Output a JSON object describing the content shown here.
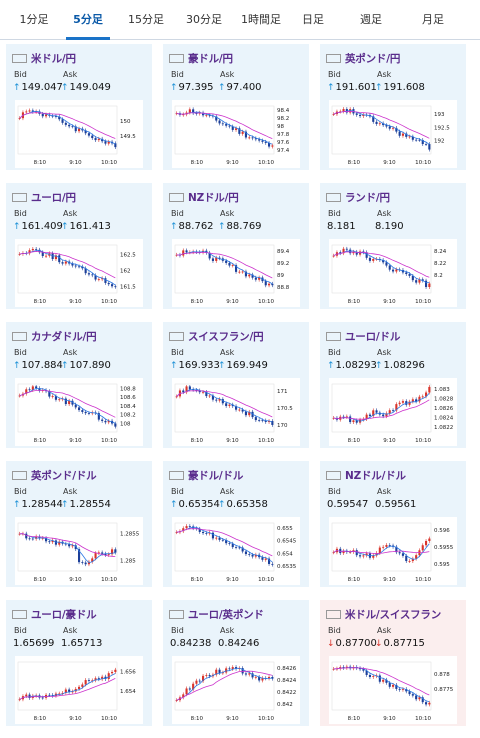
{
  "tabs": [
    {
      "label": "1分足"
    },
    {
      "label": "5分足",
      "active": true
    },
    {
      "label": "15分足"
    },
    {
      "label": "30分足"
    },
    {
      "label": "1時間足"
    },
    {
      "label": "日足"
    },
    {
      "label": "週足"
    },
    {
      "label": "月足"
    }
  ],
  "labels": {
    "bid": "Bid",
    "ask": "Ask"
  },
  "colors": {
    "accent": "#1a73c8",
    "pair": "#5a2d8c",
    "up_arrow": "#1a8fd6",
    "down_arrow": "#d9342b",
    "bull": "#d9342b",
    "bear": "#1c3f99",
    "ma_fast": "#2b78e4",
    "ma_slow": "#cc33cc"
  },
  "cards": [
    {
      "pair": "米ドル/円",
      "flag": "us-flag-icon",
      "bid": "149.047",
      "ask": "149.049",
      "dir": "up",
      "xticks": [
        "8:10",
        "9:10",
        "10:10"
      ],
      "yticks": [
        "150",
        "149.5"
      ],
      "yrange": [
        148.9,
        150.5
      ],
      "shape": "down"
    },
    {
      "pair": "豪ドル/円",
      "flag": "au-flag-icon",
      "bid": "97.395",
      "ask": "97.400",
      "dir": "up",
      "xticks": [
        "8:10",
        "9:10",
        "10:10"
      ],
      "yticks": [
        "98.4",
        "98.2",
        "98",
        "97.8",
        "97.6",
        "97.4"
      ],
      "yrange": [
        97.3,
        98.5
      ],
      "shape": "down"
    },
    {
      "pair": "英ポンド/円",
      "flag": "gb-flag-icon",
      "bid": "191.601",
      "ask": "191.608",
      "dir": "up",
      "xticks": [
        "8:10",
        "9:10",
        "10:10"
      ],
      "yticks": [
        "193",
        "192.5",
        "192"
      ],
      "yrange": [
        191.5,
        193.3
      ],
      "shape": "down"
    },
    {
      "pair": "ユーロ/円",
      "flag": "eu-flag-icon",
      "bid": "161.409",
      "ask": "161.413",
      "dir": "up",
      "xticks": [
        "8:10",
        "9:10",
        "10:10"
      ],
      "yticks": [
        "162.5",
        "162",
        "161.5"
      ],
      "yrange": [
        161.3,
        162.8
      ],
      "shape": "down"
    },
    {
      "pair": "NZドル/円",
      "flag": "nz-flag-icon",
      "bid": "88.762",
      "ask": "88.769",
      "dir": "up",
      "xticks": [
        "8:10",
        "9:10",
        "10:10"
      ],
      "yticks": [
        "89.4",
        "89.2",
        "89",
        "88.8"
      ],
      "yrange": [
        88.7,
        89.5
      ],
      "shape": "down"
    },
    {
      "pair": "ランド/円",
      "flag": "za-flag-icon",
      "bid": "8.181",
      "ask": "8.190",
      "dir": "none",
      "xticks": [
        "8:10",
        "9:10",
        "10:10"
      ],
      "yticks": [
        "8.24",
        "8.22",
        "8.2"
      ],
      "yrange": [
        8.17,
        8.25
      ],
      "shape": "down"
    },
    {
      "pair": "カナダドル/円",
      "flag": "ca-flag-icon",
      "bid": "107.884",
      "ask": "107.890",
      "dir": "up",
      "xticks": [
        "8:10",
        "9:10",
        "10:10"
      ],
      "yticks": [
        "108.8",
        "108.6",
        "108.4",
        "108.2",
        "108"
      ],
      "yrange": [
        107.8,
        108.9
      ],
      "shape": "down"
    },
    {
      "pair": "スイスフラン/円",
      "flag": "ch-flag-icon",
      "bid": "169.933",
      "ask": "169.949",
      "dir": "up",
      "xticks": [
        "8:10",
        "9:10",
        "10:10"
      ],
      "yticks": [
        "171",
        "170.5",
        "170"
      ],
      "yrange": [
        169.8,
        171.2
      ],
      "shape": "down"
    },
    {
      "pair": "ユーロ/ドル",
      "flag": "eu-flag-icon",
      "bid": "1.08293",
      "ask": "1.08296",
      "dir": "up",
      "xticks": [
        "8:10",
        "9:10",
        "10:10"
      ],
      "yticks": [
        "1.083",
        "1.0828",
        "1.0826",
        "1.0824",
        "1.0822"
      ],
      "yrange": [
        1.0821,
        1.0831
      ],
      "shape": "up"
    },
    {
      "pair": "英ポンド/ドル",
      "flag": "gb-flag-icon",
      "bid": "1.28544",
      "ask": "1.28554",
      "dir": "up",
      "xticks": [
        "8:10",
        "9:10",
        "10:10"
      ],
      "yticks": [
        "1.2855",
        "1.285"
      ],
      "yrange": [
        1.2848,
        1.2857
      ],
      "shape": "dip"
    },
    {
      "pair": "豪ドル/ドル",
      "flag": "au-flag-icon",
      "bid": "0.65354",
      "ask": "0.65358",
      "dir": "up",
      "xticks": [
        "8:10",
        "9:10",
        "10:10"
      ],
      "yticks": [
        "0.655",
        "0.6545",
        "0.654",
        "0.6535"
      ],
      "yrange": [
        0.6533,
        0.6552
      ],
      "shape": "down"
    },
    {
      "pair": "NZドル/ドル",
      "flag": "nz-flag-icon",
      "bid": "0.59547",
      "ask": "0.59561",
      "dir": "none",
      "xticks": [
        "8:10",
        "9:10",
        "10:10"
      ],
      "yticks": [
        "0.596",
        "0.5955",
        "0.595"
      ],
      "yrange": [
        0.5948,
        0.5962
      ],
      "shape": "flat"
    },
    {
      "pair": "ユーロ/豪ドル",
      "flag": "eu-flag-icon",
      "bid": "1.65699",
      "ask": "1.65713",
      "dir": "none",
      "xticks": [
        "8:10",
        "9:10",
        "10:10"
      ],
      "yticks": [
        "1.656",
        "1.654"
      ],
      "yrange": [
        1.652,
        1.657
      ],
      "shape": "up"
    },
    {
      "pair": "ユーロ/英ポンド",
      "flag": "eu-flag-icon",
      "bid": "0.84238",
      "ask": "0.84246",
      "dir": "none",
      "xticks": [
        "8:10",
        "9:10",
        "10:10"
      ],
      "yticks": [
        "0.8426",
        "0.8424",
        "0.8422",
        "0.842"
      ],
      "yrange": [
        0.8419,
        0.8427
      ],
      "shape": "hump"
    },
    {
      "pair": "米ドル/スイスフラン",
      "flag": "us-ch-flag-icon",
      "bid": "0.87700",
      "ask": "0.87715",
      "dir": "down",
      "xticks": [
        "8:10",
        "9:10",
        "10:10"
      ],
      "yticks": [
        "0.878",
        "0.8775"
      ],
      "yrange": [
        0.8768,
        0.8784
      ],
      "shape": "down",
      "highlight": true
    }
  ]
}
